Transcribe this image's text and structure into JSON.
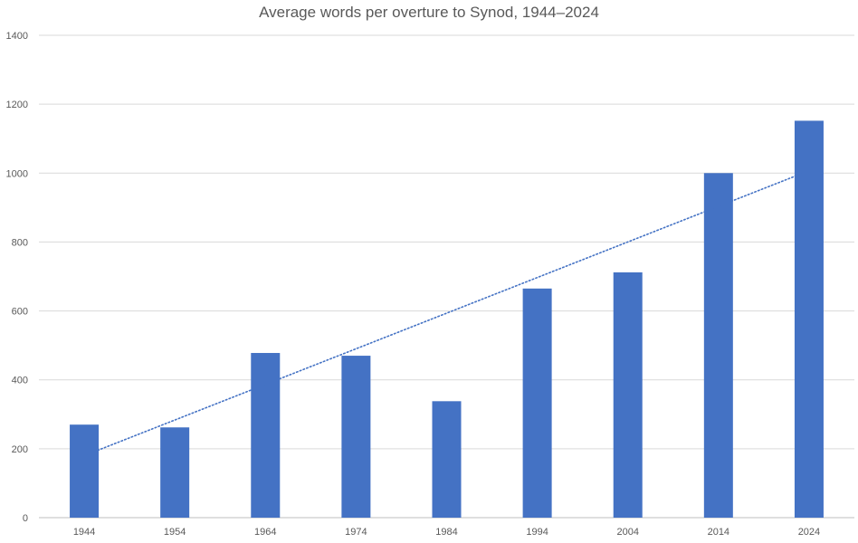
{
  "chart_data": {
    "type": "bar",
    "title": "Average words per overture to Synod, 1944–2024",
    "xlabel": "",
    "ylabel": "",
    "categories": [
      "1944",
      "1954",
      "1964",
      "1974",
      "1984",
      "1994",
      "2004",
      "2014",
      "2024"
    ],
    "series": [
      {
        "values": [
          270,
          262,
          478,
          470,
          338,
          665,
          712,
          1000,
          1152
        ]
      }
    ],
    "trendline": {
      "type": "linear",
      "style": "dotted",
      "start_value": 180,
      "end_value": 1007
    },
    "ylim": [
      0,
      1400
    ],
    "yticks": [
      0,
      200,
      400,
      600,
      800,
      1000,
      1200,
      1400
    ],
    "grid": true,
    "legend": "none",
    "colors": {
      "bar": "#4472C4",
      "trendline": "#4472C4",
      "gridline": "#D9D9D9",
      "text": "#595959"
    }
  }
}
